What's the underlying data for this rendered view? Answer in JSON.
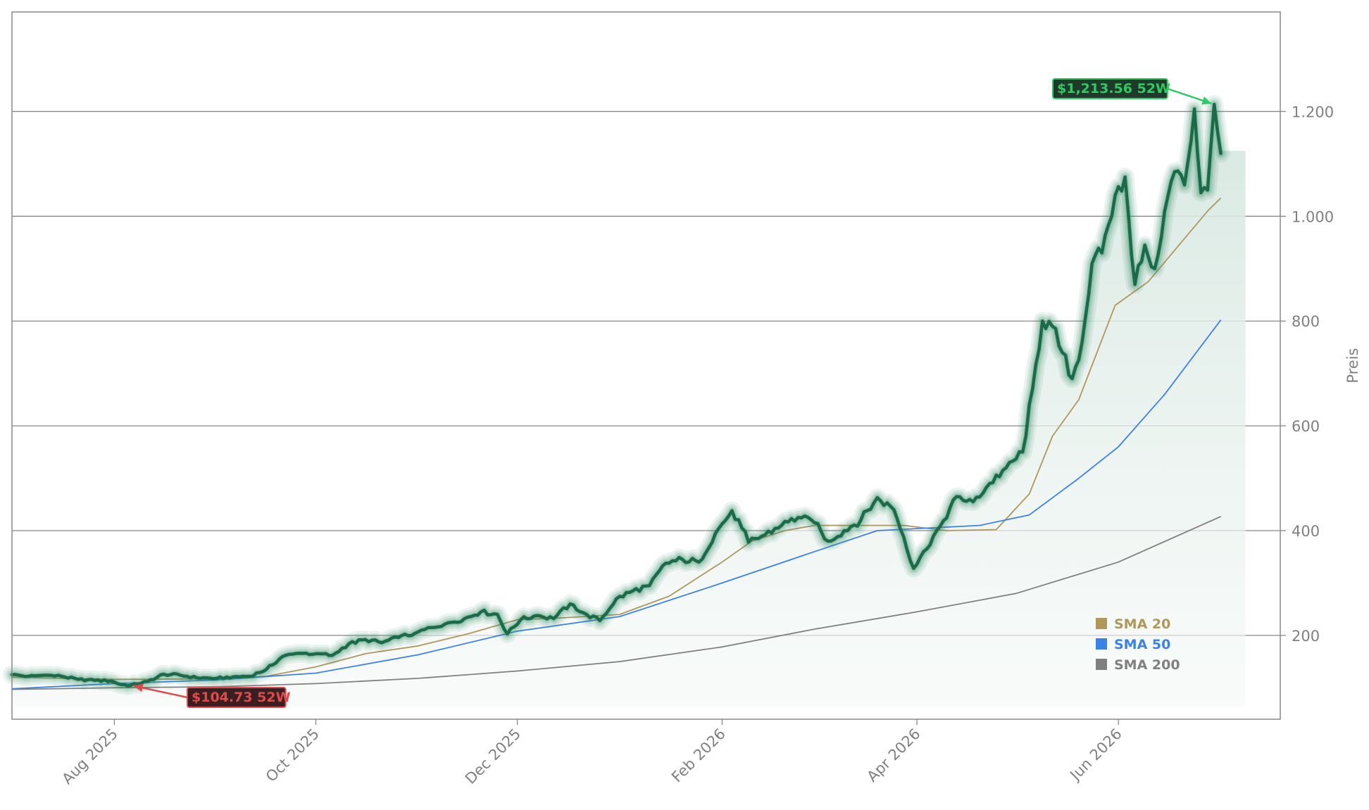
{
  "chart_data": {
    "type": "line",
    "title": "",
    "xlabel": "",
    "ylabel": "Preis",
    "x_range": [
      "2025-07-01",
      "2026-07-20"
    ],
    "ylim": [
      40,
      1390
    ],
    "y_ticks": [
      200,
      400,
      600,
      800,
      1000,
      1200
    ],
    "y_tick_labels": [
      "200",
      "400",
      "600",
      "800",
      "1.000",
      "1.200"
    ],
    "x_ticks": [
      "2025-08-01",
      "2025-10-01",
      "2025-12-01",
      "2026-02-01",
      "2026-04-01",
      "2026-06-01"
    ],
    "x_tick_labels": [
      "Aug 2025",
      "Oct 2025",
      "Dec 2025",
      "Feb 2026",
      "Apr 2026",
      "Jun 2026"
    ],
    "grid": "horizontal",
    "legend_position": "lower-right",
    "colors": {
      "price": "#1a6b4a",
      "price_glow": "#2e8b62",
      "sma20": "#b0975a",
      "sma50": "#3b82e6",
      "sma200": "#808080",
      "high": "#2ecc60",
      "low": "#e04a4a"
    },
    "series": [
      {
        "name": "Price",
        "points": [
          [
            "2025-07-01",
            125
          ],
          [
            "2025-07-06",
            122
          ],
          [
            "2025-07-11",
            124
          ],
          [
            "2025-07-16",
            122
          ],
          [
            "2025-07-21",
            116
          ],
          [
            "2025-07-26",
            114
          ],
          [
            "2025-07-31",
            113
          ],
          [
            "2025-08-03",
            106
          ],
          [
            "2025-08-06",
            104.73
          ],
          [
            "2025-08-11",
            112
          ],
          [
            "2025-08-16",
            126
          ],
          [
            "2025-08-21",
            124
          ],
          [
            "2025-08-26",
            119
          ],
          [
            "2025-09-01",
            118
          ],
          [
            "2025-09-06",
            121
          ],
          [
            "2025-09-11",
            122
          ],
          [
            "2025-09-16",
            135
          ],
          [
            "2025-09-21",
            160
          ],
          [
            "2025-09-26",
            166
          ],
          [
            "2025-10-01",
            165
          ],
          [
            "2025-10-06",
            162
          ],
          [
            "2025-10-11",
            184
          ],
          [
            "2025-10-16",
            192
          ],
          [
            "2025-10-21",
            186
          ],
          [
            "2025-10-26",
            196
          ],
          [
            "2025-10-31",
            204
          ],
          [
            "2025-11-05",
            215
          ],
          [
            "2025-11-10",
            224
          ],
          [
            "2025-11-15",
            232
          ],
          [
            "2025-11-20",
            245
          ],
          [
            "2025-11-25",
            240
          ],
          [
            "2025-11-28",
            203
          ],
          [
            "2025-12-02",
            230
          ],
          [
            "2025-12-07",
            238
          ],
          [
            "2025-12-12",
            232
          ],
          [
            "2025-12-17",
            260
          ],
          [
            "2025-12-22",
            240
          ],
          [
            "2025-12-26",
            228
          ],
          [
            "2025-12-31",
            270
          ],
          [
            "2026-01-05",
            285
          ],
          [
            "2026-01-10",
            295
          ],
          [
            "2026-01-15",
            338
          ],
          [
            "2026-01-20",
            345
          ],
          [
            "2026-01-25",
            340
          ],
          [
            "2026-01-30",
            395
          ],
          [
            "2026-02-04",
            438
          ],
          [
            "2026-02-07",
            405
          ],
          [
            "2026-02-09",
            378
          ],
          [
            "2026-02-14",
            392
          ],
          [
            "2026-02-19",
            410
          ],
          [
            "2026-02-24",
            425
          ],
          [
            "2026-03-01",
            415
          ],
          [
            "2026-03-05",
            380
          ],
          [
            "2026-03-10",
            400
          ],
          [
            "2026-03-15",
            420
          ],
          [
            "2026-03-20",
            463
          ],
          [
            "2026-03-25",
            440
          ],
          [
            "2026-03-28",
            388
          ],
          [
            "2026-03-31",
            328
          ],
          [
            "2026-04-03",
            360
          ],
          [
            "2026-04-08",
            408
          ],
          [
            "2026-04-13",
            465
          ],
          [
            "2026-04-18",
            455
          ],
          [
            "2026-04-23",
            490
          ],
          [
            "2026-04-28",
            520
          ],
          [
            "2026-05-03",
            550
          ],
          [
            "2026-05-06",
            670
          ],
          [
            "2026-05-09",
            800
          ],
          [
            "2026-05-12",
            790
          ],
          [
            "2026-05-15",
            740
          ],
          [
            "2026-05-18",
            690
          ],
          [
            "2026-05-21",
            760
          ],
          [
            "2026-05-24",
            910
          ],
          [
            "2026-05-27",
            930
          ],
          [
            "2026-05-31",
            1040
          ],
          [
            "2026-06-03",
            1075
          ],
          [
            "2026-06-06",
            870
          ],
          [
            "2026-06-09",
            945
          ],
          [
            "2026-06-12",
            900
          ],
          [
            "2026-06-15",
            1010
          ],
          [
            "2026-06-18",
            1085
          ],
          [
            "2026-06-21",
            1060
          ],
          [
            "2026-06-24",
            1205
          ],
          [
            "2026-06-26",
            1045
          ],
          [
            "2026-06-28",
            1050
          ],
          [
            "2026-06-30",
            1213.56
          ],
          [
            "2026-07-02",
            1120
          ]
        ]
      },
      {
        "name": "SMA 20",
        "points": [
          [
            "2025-07-01",
            120
          ],
          [
            "2025-08-01",
            116
          ],
          [
            "2025-09-01",
            117
          ],
          [
            "2025-09-16",
            122
          ],
          [
            "2025-10-01",
            140
          ],
          [
            "2025-10-16",
            165
          ],
          [
            "2025-11-01",
            180
          ],
          [
            "2025-11-16",
            203
          ],
          [
            "2025-12-01",
            230
          ],
          [
            "2025-12-16",
            234
          ],
          [
            "2026-01-01",
            240
          ],
          [
            "2026-01-16",
            275
          ],
          [
            "2026-02-01",
            340
          ],
          [
            "2026-02-10",
            380
          ],
          [
            "2026-02-20",
            400
          ],
          [
            "2026-03-01",
            410
          ],
          [
            "2026-03-16",
            410
          ],
          [
            "2026-03-28",
            410
          ],
          [
            "2026-04-10",
            400
          ],
          [
            "2026-04-25",
            402
          ],
          [
            "2026-05-05",
            470
          ],
          [
            "2026-05-12",
            580
          ],
          [
            "2026-05-20",
            650
          ],
          [
            "2026-05-31",
            830
          ],
          [
            "2026-06-10",
            875
          ],
          [
            "2026-06-20",
            950
          ],
          [
            "2026-06-28",
            1010
          ],
          [
            "2026-07-02",
            1035
          ]
        ]
      },
      {
        "name": "SMA 50",
        "points": [
          [
            "2025-07-01",
            98
          ],
          [
            "2025-08-01",
            108
          ],
          [
            "2025-09-01",
            115
          ],
          [
            "2025-10-01",
            128
          ],
          [
            "2025-11-01",
            163
          ],
          [
            "2025-12-01",
            208
          ],
          [
            "2026-01-01",
            236
          ],
          [
            "2026-02-01",
            300
          ],
          [
            "2026-03-01",
            360
          ],
          [
            "2026-03-20",
            400
          ],
          [
            "2026-04-20",
            410
          ],
          [
            "2026-05-05",
            430
          ],
          [
            "2026-05-20",
            500
          ],
          [
            "2026-06-01",
            560
          ],
          [
            "2026-06-15",
            660
          ],
          [
            "2026-07-02",
            802
          ]
        ]
      },
      {
        "name": "SMA 200",
        "points": [
          [
            "2025-07-01",
            97
          ],
          [
            "2025-08-01",
            100
          ],
          [
            "2025-09-01",
            102
          ],
          [
            "2025-10-01",
            108
          ],
          [
            "2025-11-01",
            118
          ],
          [
            "2025-12-01",
            132
          ],
          [
            "2026-01-01",
            150
          ],
          [
            "2026-02-01",
            178
          ],
          [
            "2026-03-01",
            212
          ],
          [
            "2026-04-01",
            245
          ],
          [
            "2026-05-01",
            280
          ],
          [
            "2026-06-01",
            340
          ],
          [
            "2026-07-02",
            427
          ]
        ]
      }
    ],
    "legend": [
      "SMA 20",
      "SMA 50",
      "SMA 200"
    ],
    "annotations": {
      "high": {
        "label": "$1,213.56 52W",
        "x": "2026-06-30",
        "y": 1213.56
      },
      "low": {
        "label": "$104.73 52W",
        "x": "2025-08-06",
        "y": 104.73
      }
    }
  }
}
